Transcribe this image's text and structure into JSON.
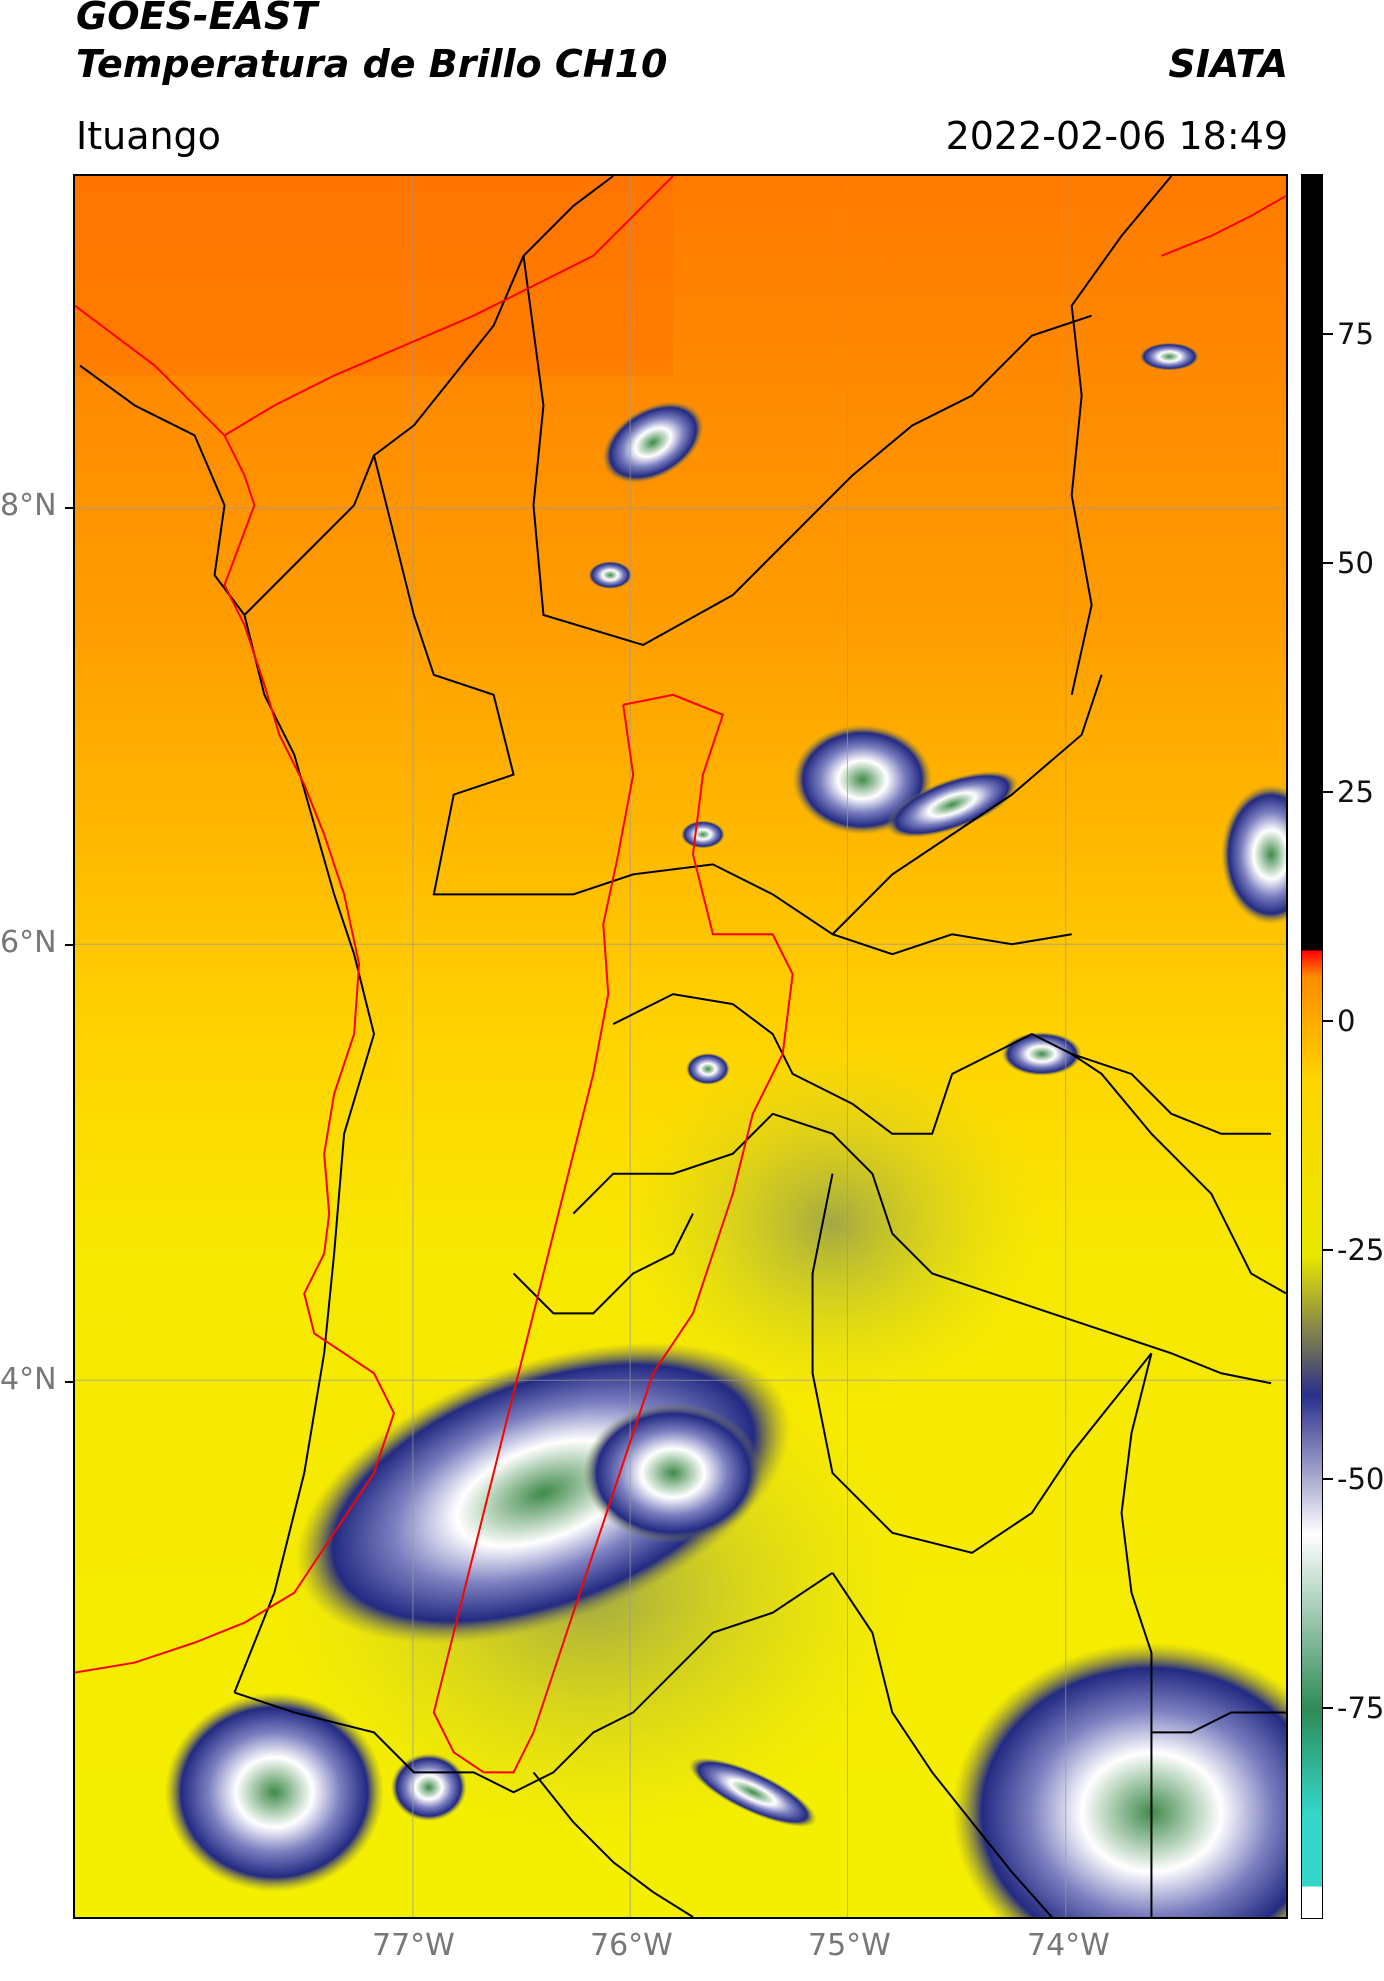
{
  "header": {
    "satellite": "GOES-EAST",
    "product": "Temperatura de Brillo CH10",
    "agency": "SIATA",
    "location": "Ituango",
    "datetime": "2022-02-06 18:49"
  },
  "map": {
    "lat_labels": [
      "8°N",
      "6°N",
      "4°N"
    ],
    "lon_labels": [
      "77°W",
      "76°W",
      "75°W",
      "74°W"
    ],
    "colors": {
      "boundary_department": "#000000",
      "boundary_highlight": "#ff0000",
      "gridline": "#999999"
    }
  },
  "colorbar": {
    "tick_labels": [
      "75",
      "50",
      "25",
      "0",
      "-25",
      "-50",
      "-75"
    ],
    "tick_values": [
      75,
      50,
      25,
      0,
      -25,
      -50,
      -75
    ],
    "range": [
      -95,
      90
    ],
    "colors": [
      "#ffffff",
      "#33d6c8",
      "#2e8b57",
      "#ffffff",
      "#2b2f8a",
      "#e8e800",
      "#ffd500",
      "#ff8c00",
      "#ff0000",
      "#000000"
    ]
  }
}
